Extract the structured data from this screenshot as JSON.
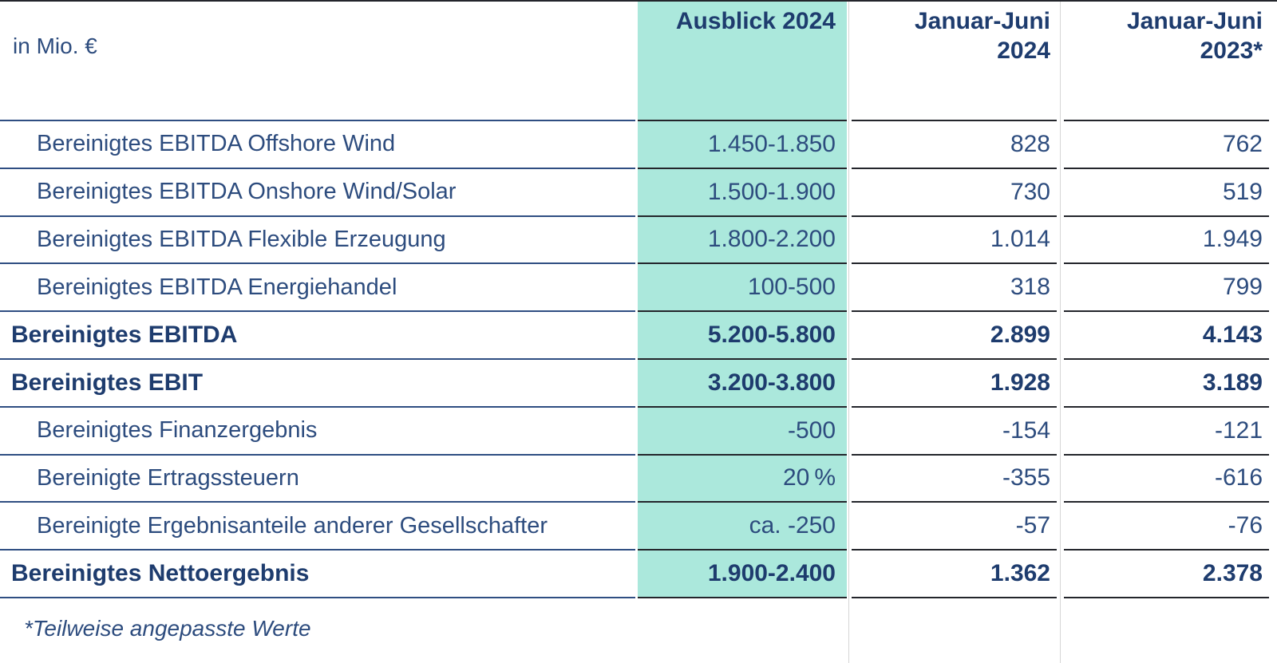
{
  "table": {
    "unit_label": "in Mio. €",
    "columns": {
      "outlook": {
        "label": "Ausblick 2024",
        "highlighted": true
      },
      "h1_2024": {
        "line1": "Januar-Juni",
        "line2": "2024"
      },
      "h1_2023": {
        "line1": "Januar-Juni",
        "line2": "2023*"
      }
    },
    "rows": [
      {
        "label": "Bereinigtes EBITDA Offshore Wind",
        "outlook": "1.450-1.850",
        "h1_2024": "828",
        "h1_2023": "762",
        "bold": false
      },
      {
        "label": "Bereinigtes EBITDA Onshore Wind/Solar",
        "outlook": "1.500-1.900",
        "h1_2024": "730",
        "h1_2023": "519",
        "bold": false
      },
      {
        "label": "Bereinigtes EBITDA Flexible Erzeugung",
        "outlook": "1.800-2.200",
        "h1_2024": "1.014",
        "h1_2023": "1.949",
        "bold": false
      },
      {
        "label": "Bereinigtes EBITDA Energiehandel",
        "outlook": "100-500",
        "h1_2024": "318",
        "h1_2023": "799",
        "bold": false
      },
      {
        "label": "Bereinigtes EBITDA",
        "outlook": "5.200-5.800",
        "h1_2024": "2.899",
        "h1_2023": "4.143",
        "bold": true
      },
      {
        "label": "Bereinigtes EBIT",
        "outlook": "3.200-3.800",
        "h1_2024": "1.928",
        "h1_2023": "3.189",
        "bold": true
      },
      {
        "label": "Bereinigtes Finanzergebnis",
        "outlook": "-500",
        "h1_2024": "-154",
        "h1_2023": "-121",
        "bold": false
      },
      {
        "label": "Bereinigte Ertragssteuern",
        "outlook": "20 %",
        "h1_2024": "-355",
        "h1_2023": "-616",
        "bold": false
      },
      {
        "label": "Bereinigte Ergebnisanteile anderer Gesellschafter",
        "outlook": "ca. -250",
        "h1_2024": "-57",
        "h1_2023": "-76",
        "bold": false
      },
      {
        "label": "Bereinigtes Nettoergebnis",
        "outlook": "1.900-2.400",
        "h1_2024": "1.362",
        "h1_2023": "2.378",
        "bold": true
      }
    ],
    "footnote": "*Teilweise angepasste Werte"
  },
  "colors": {
    "text_navy": "#2d4c7e",
    "text_navy_bold": "#1e3c6e",
    "label_separator": "#2f4e82",
    "value_separator": "#23252b",
    "highlight_teal": "#abe8dc",
    "column_guide": "#d6d6d6"
  }
}
